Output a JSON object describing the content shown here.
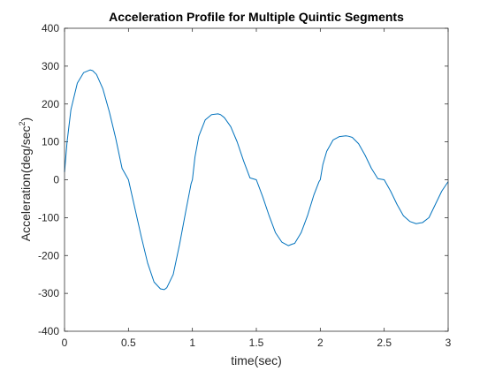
{
  "chart_data": {
    "type": "line",
    "title": "Acceleration Profile for Multiple Quintic Segments",
    "xlabel": "time(sec)",
    "ylabel": {
      "prefix": "Acceleration(deg/sec",
      "superscript": "2",
      "suffix": ")"
    },
    "xlim": [
      0,
      3
    ],
    "ylim": [
      -400,
      400
    ],
    "xticks": [
      0,
      0.5,
      1,
      1.5,
      2,
      2.5,
      3
    ],
    "xtick_labels": [
      "0",
      "0.5",
      "1",
      "1.5",
      "2",
      "2.5",
      "3"
    ],
    "yticks": [
      -400,
      -300,
      -200,
      -100,
      0,
      100,
      200,
      300,
      400
    ],
    "ytick_labels": [
      "-400",
      "-300",
      "-200",
      "-100",
      "0",
      "100",
      "200",
      "300",
      "400"
    ],
    "grid": false,
    "box": true,
    "line_color": "#0072bd",
    "series": [
      {
        "x": [
          0,
          0.02,
          0.05,
          0.1,
          0.15,
          0.2,
          0.22,
          0.25,
          0.3,
          0.35,
          0.4,
          0.45,
          0.5,
          0.55,
          0.6,
          0.65,
          0.7,
          0.75,
          0.78,
          0.8,
          0.85,
          0.9,
          0.95,
          0.99,
          1.0,
          1.0,
          1.02,
          1.05,
          1.1,
          1.15,
          1.2,
          1.22,
          1.25,
          1.3,
          1.35,
          1.4,
          1.45,
          1.5,
          1.55,
          1.6,
          1.65,
          1.7,
          1.75,
          1.78,
          1.8,
          1.85,
          1.9,
          1.95,
          1.99,
          2.0,
          2.0,
          2.02,
          2.05,
          2.1,
          2.15,
          2.2,
          2.22,
          2.25,
          2.3,
          2.35,
          2.4,
          2.45,
          2.5,
          2.55,
          2.6,
          2.65,
          2.7,
          2.75,
          2.78,
          2.8,
          2.85,
          2.9,
          2.95,
          3.0
        ],
        "y": [
          20,
          100,
          185,
          255,
          283,
          290,
          288,
          278,
          240,
          180,
          110,
          30,
          0,
          -75,
          -150,
          -220,
          -270,
          -288,
          -290,
          -285,
          -250,
          -170,
          -80,
          -10,
          0,
          0,
          60,
          115,
          158,
          172,
          174,
          172,
          164,
          140,
          100,
          50,
          5,
          0,
          -45,
          -95,
          -140,
          -165,
          -174,
          -170,
          -168,
          -140,
          -95,
          -40,
          -5,
          0,
          0,
          40,
          75,
          105,
          114,
          116,
          115,
          112,
          95,
          65,
          30,
          3,
          0,
          -30,
          -65,
          -95,
          -110,
          -116,
          -114,
          -113,
          -100,
          -65,
          -30,
          -5
        ]
      }
    ]
  }
}
